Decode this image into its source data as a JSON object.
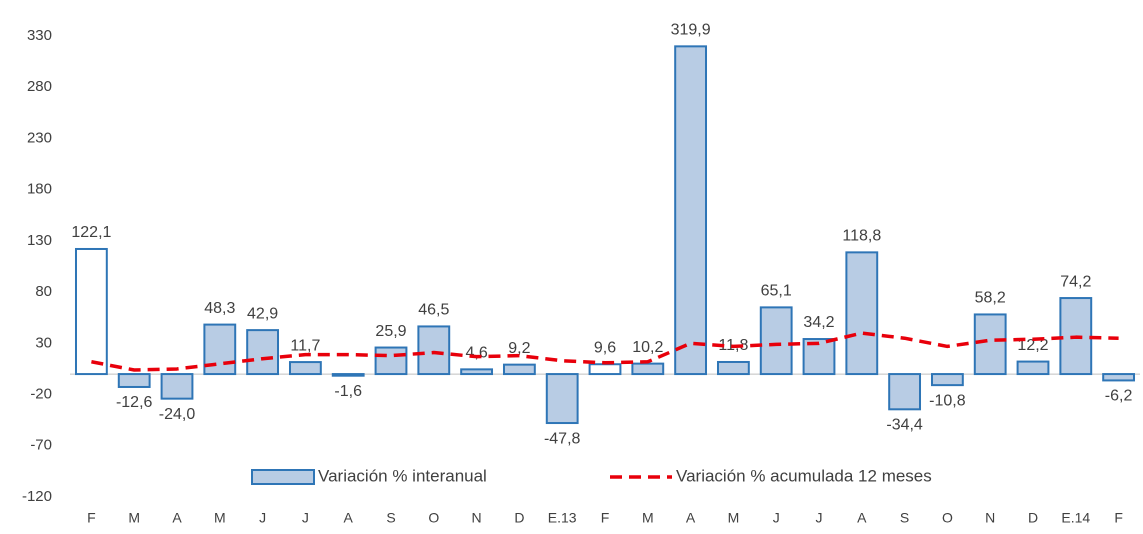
{
  "chart_data": {
    "type": "bar",
    "categories": [
      "F",
      "M",
      "A",
      "M",
      "J",
      "J",
      "A",
      "S",
      "O",
      "N",
      "D",
      "E.13",
      "F",
      "M",
      "A",
      "M",
      "J",
      "J",
      "A",
      "S",
      "O",
      "N",
      "D",
      "E.14",
      "F"
    ],
    "series": [
      {
        "name": "Variación % interanual",
        "type": "bar",
        "color": "#b8cce4",
        "stroke": "#2e75b6",
        "point_colors": [
          "#ffffff",
          "#b8cce4",
          "#b8cce4",
          "#b8cce4",
          "#b8cce4",
          "#b8cce4",
          "#b8cce4",
          "#b8cce4",
          "#b8cce4",
          "#b8cce4",
          "#b8cce4",
          "#b8cce4",
          "#ffffff",
          "#b8cce4",
          "#b8cce4",
          "#b8cce4",
          "#b8cce4",
          "#b8cce4",
          "#b8cce4",
          "#b8cce4",
          "#b8cce4",
          "#b8cce4",
          "#b8cce4",
          "#b8cce4",
          "#b8cce4"
        ],
        "values": [
          122.1,
          -12.6,
          -24.0,
          48.3,
          42.9,
          11.7,
          -1.6,
          25.9,
          46.5,
          4.6,
          9.2,
          -47.8,
          9.6,
          10.2,
          319.9,
          11.8,
          65.1,
          34.2,
          118.8,
          -34.4,
          -10.8,
          58.2,
          12.2,
          74.2,
          -6.2
        ],
        "value_labels": [
          "122,1",
          "-12,6",
          "-24,0",
          "48,3",
          "42,9",
          "11,7",
          "-1,6",
          "25,9",
          "46,5",
          "4,6",
          "9,2",
          "-47,8",
          "9,6",
          "10,2",
          "319,9",
          "11,8",
          "65,1",
          "34,2",
          "118,8",
          "-34,4",
          "-10,8",
          "58,2",
          "12,2",
          "74,2",
          "-6,2"
        ]
      },
      {
        "name": "Variación % acumulada 12 meses",
        "type": "line",
        "color": "#e8000b",
        "dashed": true,
        "values": [
          12,
          4,
          5,
          10,
          15,
          19,
          19,
          18,
          21,
          17,
          18,
          13,
          11,
          12,
          30,
          27,
          29,
          30,
          40,
          35,
          27,
          33,
          34,
          36,
          35
        ]
      }
    ],
    "ylim": [
      -120,
      330
    ],
    "yticks": [
      -120,
      -70,
      -20,
      30,
      80,
      130,
      180,
      230,
      280,
      330
    ],
    "grid": false,
    "legend": "bottom"
  }
}
